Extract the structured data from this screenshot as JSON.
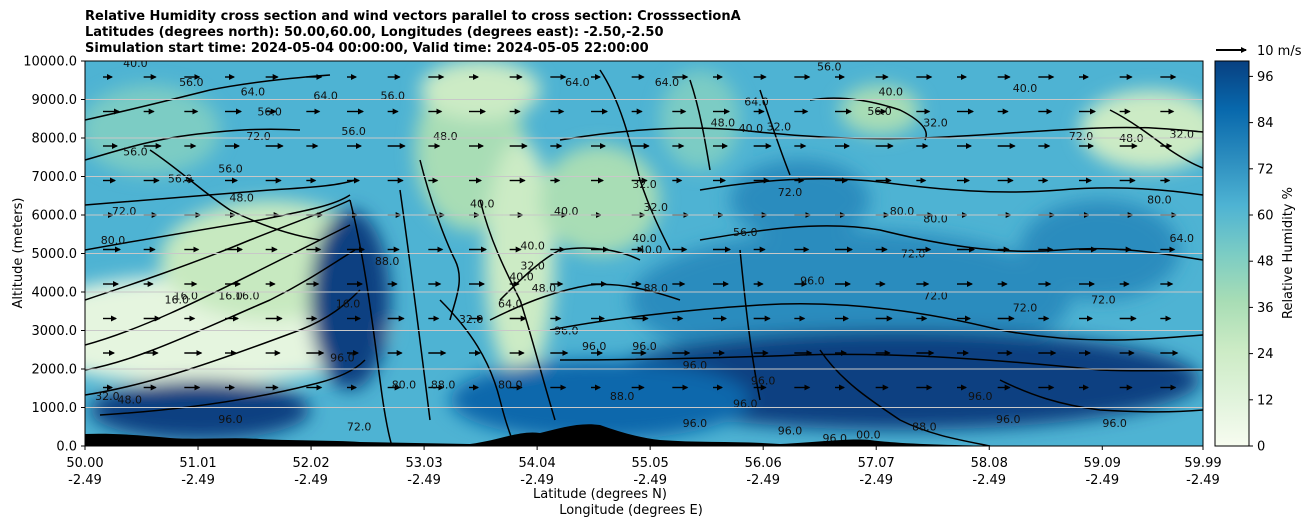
{
  "chart_data": {
    "type": "heatmap",
    "title_lines": [
      "Relative Humidity cross section and wind vectors parallel to cross section: CrosssectionA",
      "Latitudes (degrees north): 50.00,60.00, Longitudes (degrees east): -2.50,-2.50",
      "Simulation start time: 2024-05-04 00:00:00, Valid time: 2024-05-05 22:00:00"
    ],
    "ylabel": "Altitude (meters)",
    "xlabel_lines": [
      "Latitude (degrees N)",
      "Longitude (degrees E)"
    ],
    "y_ticks": [
      "0.0",
      "1000.0",
      "2000.0",
      "3000.0",
      "4000.0",
      "5000.0",
      "6000.0",
      "7000.0",
      "8000.0",
      "9000.0",
      "10000.0"
    ],
    "ylim": [
      0,
      10000
    ],
    "x_ticks": [
      {
        "lat": "50.00",
        "lon": "-2.49"
      },
      {
        "lat": "51.01",
        "lon": "-2.49"
      },
      {
        "lat": "52.02",
        "lon": "-2.49"
      },
      {
        "lat": "53.03",
        "lon": "-2.49"
      },
      {
        "lat": "54.04",
        "lon": "-2.49"
      },
      {
        "lat": "55.05",
        "lon": "-2.49"
      },
      {
        "lat": "56.06",
        "lon": "-2.49"
      },
      {
        "lat": "57.07",
        "lon": "-2.49"
      },
      {
        "lat": "58.08",
        "lon": "-2.49"
      },
      {
        "lat": "59.09",
        "lon": "-2.49"
      },
      {
        "lat": "59.99",
        "lon": "-2.49"
      }
    ],
    "xlim": [
      50.0,
      59.99
    ],
    "grid": "horizontal",
    "colorbar": {
      "label": "Relative Humidity %",
      "ticks": [
        0,
        12,
        24,
        36,
        48,
        60,
        72,
        84,
        96
      ],
      "range": [
        0,
        100
      ],
      "colormap": "GnBu",
      "colors": [
        "#f7fcf0",
        "#e0f3db",
        "#ccebc5",
        "#a8ddb5",
        "#7bccc4",
        "#4eb3d3",
        "#2b8cbe",
        "#0868ac",
        "#084081"
      ]
    },
    "quiver_key": {
      "label": "10 m/s",
      "position": "top-right"
    },
    "contour_labels": [
      {
        "lat": 50.45,
        "alt": 9850,
        "text": "40.0"
      },
      {
        "lat": 50.95,
        "alt": 9350,
        "text": "56.0"
      },
      {
        "lat": 51.5,
        "alt": 9100,
        "text": "64.0"
      },
      {
        "lat": 52.15,
        "alt": 9000,
        "text": "64.0"
      },
      {
        "lat": 52.75,
        "alt": 9000,
        "text": "56.0"
      },
      {
        "lat": 51.65,
        "alt": 8580,
        "text": "56.0"
      },
      {
        "lat": 51.55,
        "alt": 7950,
        "text": "72.0"
      },
      {
        "lat": 52.4,
        "alt": 8080,
        "text": "56.0"
      },
      {
        "lat": 50.45,
        "alt": 7550,
        "text": "56.0"
      },
      {
        "lat": 50.85,
        "alt": 6850,
        "text": "56.0"
      },
      {
        "lat": 51.3,
        "alt": 7100,
        "text": "56.0"
      },
      {
        "lat": 51.4,
        "alt": 6350,
        "text": "48.0"
      },
      {
        "lat": 50.35,
        "alt": 6000,
        "text": "72.0"
      },
      {
        "lat": 50.25,
        "alt": 5250,
        "text": "80.0"
      },
      {
        "lat": 50.9,
        "alt": 3800,
        "text": "16.0"
      },
      {
        "lat": 51.3,
        "alt": 3800,
        "text": "16.0"
      },
      {
        "lat": 51.45,
        "alt": 3800,
        "text": "16.0"
      },
      {
        "lat": 50.82,
        "alt": 3700,
        "text": "16.0"
      },
      {
        "lat": 52.35,
        "alt": 3600,
        "text": "16.0"
      },
      {
        "lat": 52.7,
        "alt": 4700,
        "text": "88.0"
      },
      {
        "lat": 53.22,
        "alt": 7950,
        "text": "48.0"
      },
      {
        "lat": 53.55,
        "alt": 6200,
        "text": "40.0"
      },
      {
        "lat": 54.3,
        "alt": 6000,
        "text": "40.0"
      },
      {
        "lat": 54.0,
        "alt": 5100,
        "text": "40.0"
      },
      {
        "lat": 54.0,
        "alt": 4580,
        "text": "32.0"
      },
      {
        "lat": 53.9,
        "alt": 4300,
        "text": "40.0"
      },
      {
        "lat": 54.1,
        "alt": 4000,
        "text": "48.0"
      },
      {
        "lat": 53.8,
        "alt": 3600,
        "text": "64.0"
      },
      {
        "lat": 53.45,
        "alt": 3200,
        "text": "32.0"
      },
      {
        "lat": 54.4,
        "alt": 9350,
        "text": "64.0"
      },
      {
        "lat": 55.2,
        "alt": 9350,
        "text": "64.0"
      },
      {
        "lat": 56.0,
        "alt": 8850,
        "text": "64.0"
      },
      {
        "lat": 55.0,
        "alt": 6700,
        "text": "32.0"
      },
      {
        "lat": 55.1,
        "alt": 6100,
        "text": "32.0"
      },
      {
        "lat": 55.0,
        "alt": 5300,
        "text": "40.0"
      },
      {
        "lat": 55.05,
        "alt": 5000,
        "text": "40.0"
      },
      {
        "lat": 55.9,
        "alt": 5450,
        "text": "56.0"
      },
      {
        "lat": 55.1,
        "alt": 4000,
        "text": "88.0"
      },
      {
        "lat": 54.3,
        "alt": 2900,
        "text": "96.0"
      },
      {
        "lat": 54.55,
        "alt": 2500,
        "text": "96.0"
      },
      {
        "lat": 55.0,
        "alt": 2500,
        "text": "96.0"
      },
      {
        "lat": 56.5,
        "alt": 4200,
        "text": "96.0"
      },
      {
        "lat": 57.6,
        "alt": 3800,
        "text": "72.0"
      },
      {
        "lat": 57.4,
        "alt": 4900,
        "text": "72.0"
      },
      {
        "lat": 58.4,
        "alt": 3500,
        "text": "72.0"
      },
      {
        "lat": 59.1,
        "alt": 3700,
        "text": "72.0"
      },
      {
        "lat": 57.3,
        "alt": 6000,
        "text": "80.0"
      },
      {
        "lat": 57.6,
        "alt": 5800,
        "text": "80.0"
      },
      {
        "lat": 59.6,
        "alt": 6300,
        "text": "80.0"
      },
      {
        "lat": 59.8,
        "alt": 5300,
        "text": "64.0"
      },
      {
        "lat": 56.3,
        "alt": 6500,
        "text": "72.0"
      },
      {
        "lat": 56.65,
        "alt": 9750,
        "text": "56.0"
      },
      {
        "lat": 57.1,
        "alt": 8600,
        "text": "56.0"
      },
      {
        "lat": 57.2,
        "alt": 9100,
        "text": "40.0"
      },
      {
        "lat": 57.6,
        "alt": 8300,
        "text": "32.0"
      },
      {
        "lat": 58.4,
        "alt": 9200,
        "text": "40.0"
      },
      {
        "lat": 58.9,
        "alt": 7950,
        "text": "72.0"
      },
      {
        "lat": 59.35,
        "alt": 7900,
        "text": "48.0"
      },
      {
        "lat": 59.8,
        "alt": 8000,
        "text": "32.0"
      },
      {
        "lat": 56.2,
        "alt": 8200,
        "text": "32.0"
      },
      {
        "lat": 55.7,
        "alt": 8300,
        "text": "48.0"
      },
      {
        "lat": 55.95,
        "alt": 8150,
        "text": "40.0"
      },
      {
        "lat": 55.45,
        "alt": 2000,
        "text": "96.0"
      },
      {
        "lat": 56.06,
        "alt": 1600,
        "text": "96.0"
      },
      {
        "lat": 55.9,
        "alt": 1000,
        "text": "96.0"
      },
      {
        "lat": 55.45,
        "alt": 500,
        "text": "96.0"
      },
      {
        "lat": 56.3,
        "alt": 300,
        "text": "96.0"
      },
      {
        "lat": 56.7,
        "alt": 100,
        "text": "96.0"
      },
      {
        "lat": 57.0,
        "alt": 200,
        "text": "00.0"
      },
      {
        "lat": 57.5,
        "alt": 400,
        "text": "88.0"
      },
      {
        "lat": 58.0,
        "alt": 1200,
        "text": "96.0"
      },
      {
        "lat": 58.25,
        "alt": 600,
        "text": "96.0"
      },
      {
        "lat": 59.2,
        "alt": 500,
        "text": "96.0"
      },
      {
        "lat": 51.3,
        "alt": 600,
        "text": "96.0"
      },
      {
        "lat": 52.45,
        "alt": 400,
        "text": "72.0"
      },
      {
        "lat": 50.2,
        "alt": 1200,
        "text": "32.0"
      },
      {
        "lat": 50.4,
        "alt": 1100,
        "text": "48.0"
      },
      {
        "lat": 53.2,
        "alt": 1500,
        "text": "88.0"
      },
      {
        "lat": 52.85,
        "alt": 1500,
        "text": "80.0"
      },
      {
        "lat": 53.8,
        "alt": 1500,
        "text": "80.0"
      },
      {
        "lat": 52.3,
        "alt": 2200,
        "text": "96.0"
      },
      {
        "lat": 54.8,
        "alt": 1200,
        "text": "88.0"
      }
    ]
  }
}
